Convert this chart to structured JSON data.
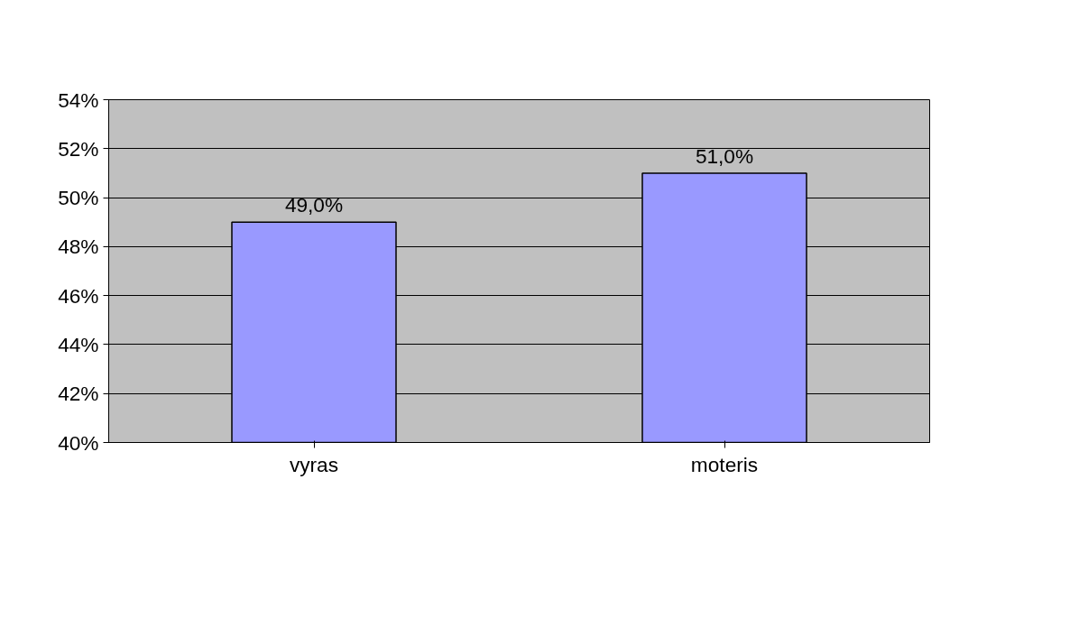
{
  "chart_data": {
    "type": "bar",
    "categories": [
      "vyras",
      "moteris"
    ],
    "values": [
      49.0,
      51.0
    ],
    "value_labels": [
      "49,0%",
      "51,0%"
    ],
    "color": "#9999ff",
    "ylim": [
      40,
      54
    ],
    "yticks": [
      {
        "value": 40,
        "label": "40%"
      },
      {
        "value": 42,
        "label": "42%"
      },
      {
        "value": 44,
        "label": "44%"
      },
      {
        "value": 46,
        "label": "46%"
      },
      {
        "value": 48,
        "label": "48%"
      },
      {
        "value": 50,
        "label": "50%"
      },
      {
        "value": 52,
        "label": "52%"
      },
      {
        "value": 54,
        "label": "54%"
      }
    ],
    "grid": "y"
  }
}
